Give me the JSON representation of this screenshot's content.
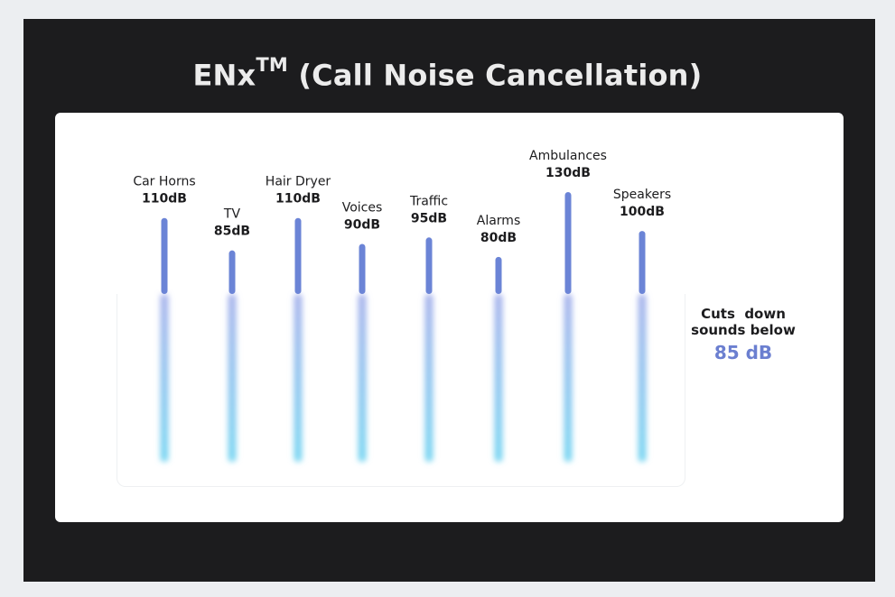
{
  "title": "ENx",
  "title_superscript": "TM",
  "title_suffix": " (Call Noise Cancellation)",
  "chart_data": {
    "type": "bar",
    "categories": [
      "Car Horns",
      "TV",
      "Hair Dryer",
      "Voices",
      "Traffic",
      "Alarms",
      "Ambulances",
      "Speakers"
    ],
    "values": [
      110,
      85,
      110,
      90,
      95,
      80,
      130,
      100
    ],
    "value_labels": [
      "110dB",
      "85dB",
      "110dB",
      "90dB",
      "95dB",
      "80dB",
      "130dB",
      "100dB"
    ],
    "unit": "dB",
    "threshold": 85,
    "colors": {
      "bar_top": "#6b84d6",
      "glow_top": "#a9b4ec",
      "glow_bottom": "#7ad6f2"
    }
  },
  "note": {
    "line1": "Cuts  down",
    "line2": "sounds below",
    "value": "85 dB"
  }
}
